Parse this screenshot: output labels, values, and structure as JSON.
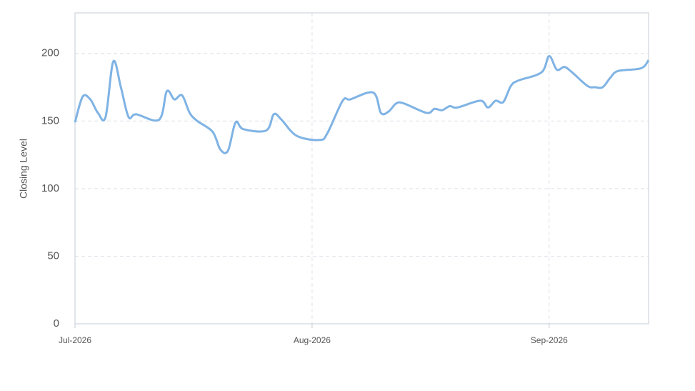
{
  "chart_data": {
    "type": "line",
    "y_label": "Closing Level",
    "x": [
      0,
      1,
      2,
      3,
      4,
      5,
      6,
      7,
      8,
      11,
      12,
      13,
      14,
      15,
      16,
      18,
      19,
      20,
      21,
      22,
      25,
      26,
      27,
      29,
      32,
      33,
      35,
      36,
      39,
      40,
      41,
      42,
      43,
      46,
      47,
      48,
      49,
      50,
      53,
      54,
      55,
      56,
      57,
      58,
      61,
      62,
      63,
      64,
      65,
      67,
      68,
      69,
      70,
      71,
      74,
      75
    ],
    "series": [
      {
        "name": "Closing Level",
        "color": "#7fb3e4",
        "values": [
          149,
          168,
          166,
          156,
          153,
          194,
          175,
          153,
          155,
          151,
          172,
          166,
          169,
          156,
          150,
          142,
          129,
          128,
          149,
          144,
          143,
          155,
          151,
          139,
          136,
          141,
          165,
          166,
          171,
          156,
          157,
          163,
          163,
          156,
          159,
          158,
          161,
          160,
          165,
          160,
          165,
          164,
          176,
          180,
          186,
          198,
          188,
          190,
          186,
          176,
          175,
          175,
          182,
          187,
          189,
          195
        ]
      }
    ],
    "xlim": [
      0,
      75
    ],
    "xticks": [
      {
        "value": 0,
        "label": "Jul-2026"
      },
      {
        "value": 31,
        "label": "Aug-2026"
      },
      {
        "value": 62,
        "label": "Sep-2026"
      }
    ],
    "ylim": [
      0,
      230
    ],
    "yticks": [
      0,
      50,
      100,
      150,
      200
    ],
    "grid": true
  }
}
